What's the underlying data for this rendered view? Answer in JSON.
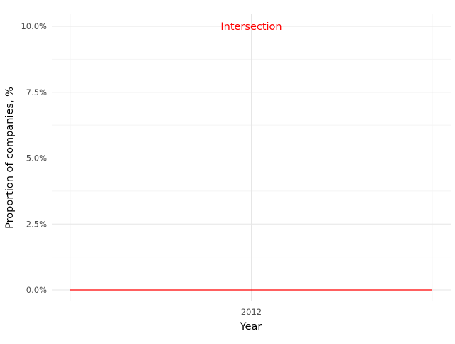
{
  "chart_data": {
    "type": "line",
    "title": "",
    "xlabel": "Year",
    "ylabel": "Proportion of companies, %",
    "x_ticks": [
      "2012"
    ],
    "y_ticks": [
      "0.0%",
      "2.5%",
      "5.0%",
      "7.5%",
      "10.0%"
    ],
    "ylim": [
      0,
      10
    ],
    "grid": true,
    "series": [
      {
        "color": "#ff0000",
        "x": [
          "2012"
        ],
        "values": [
          0
        ]
      }
    ],
    "annotations": [
      {
        "text": "Intersection",
        "x": "2012",
        "y": 10,
        "color": "#ff0000"
      }
    ]
  },
  "colors": {
    "grid_major": "#e6e6e6",
    "grid_minor": "#f4f4f4",
    "tick_text": "#4d4d4d",
    "axis_title": "#000000",
    "series": "#ff0000"
  }
}
